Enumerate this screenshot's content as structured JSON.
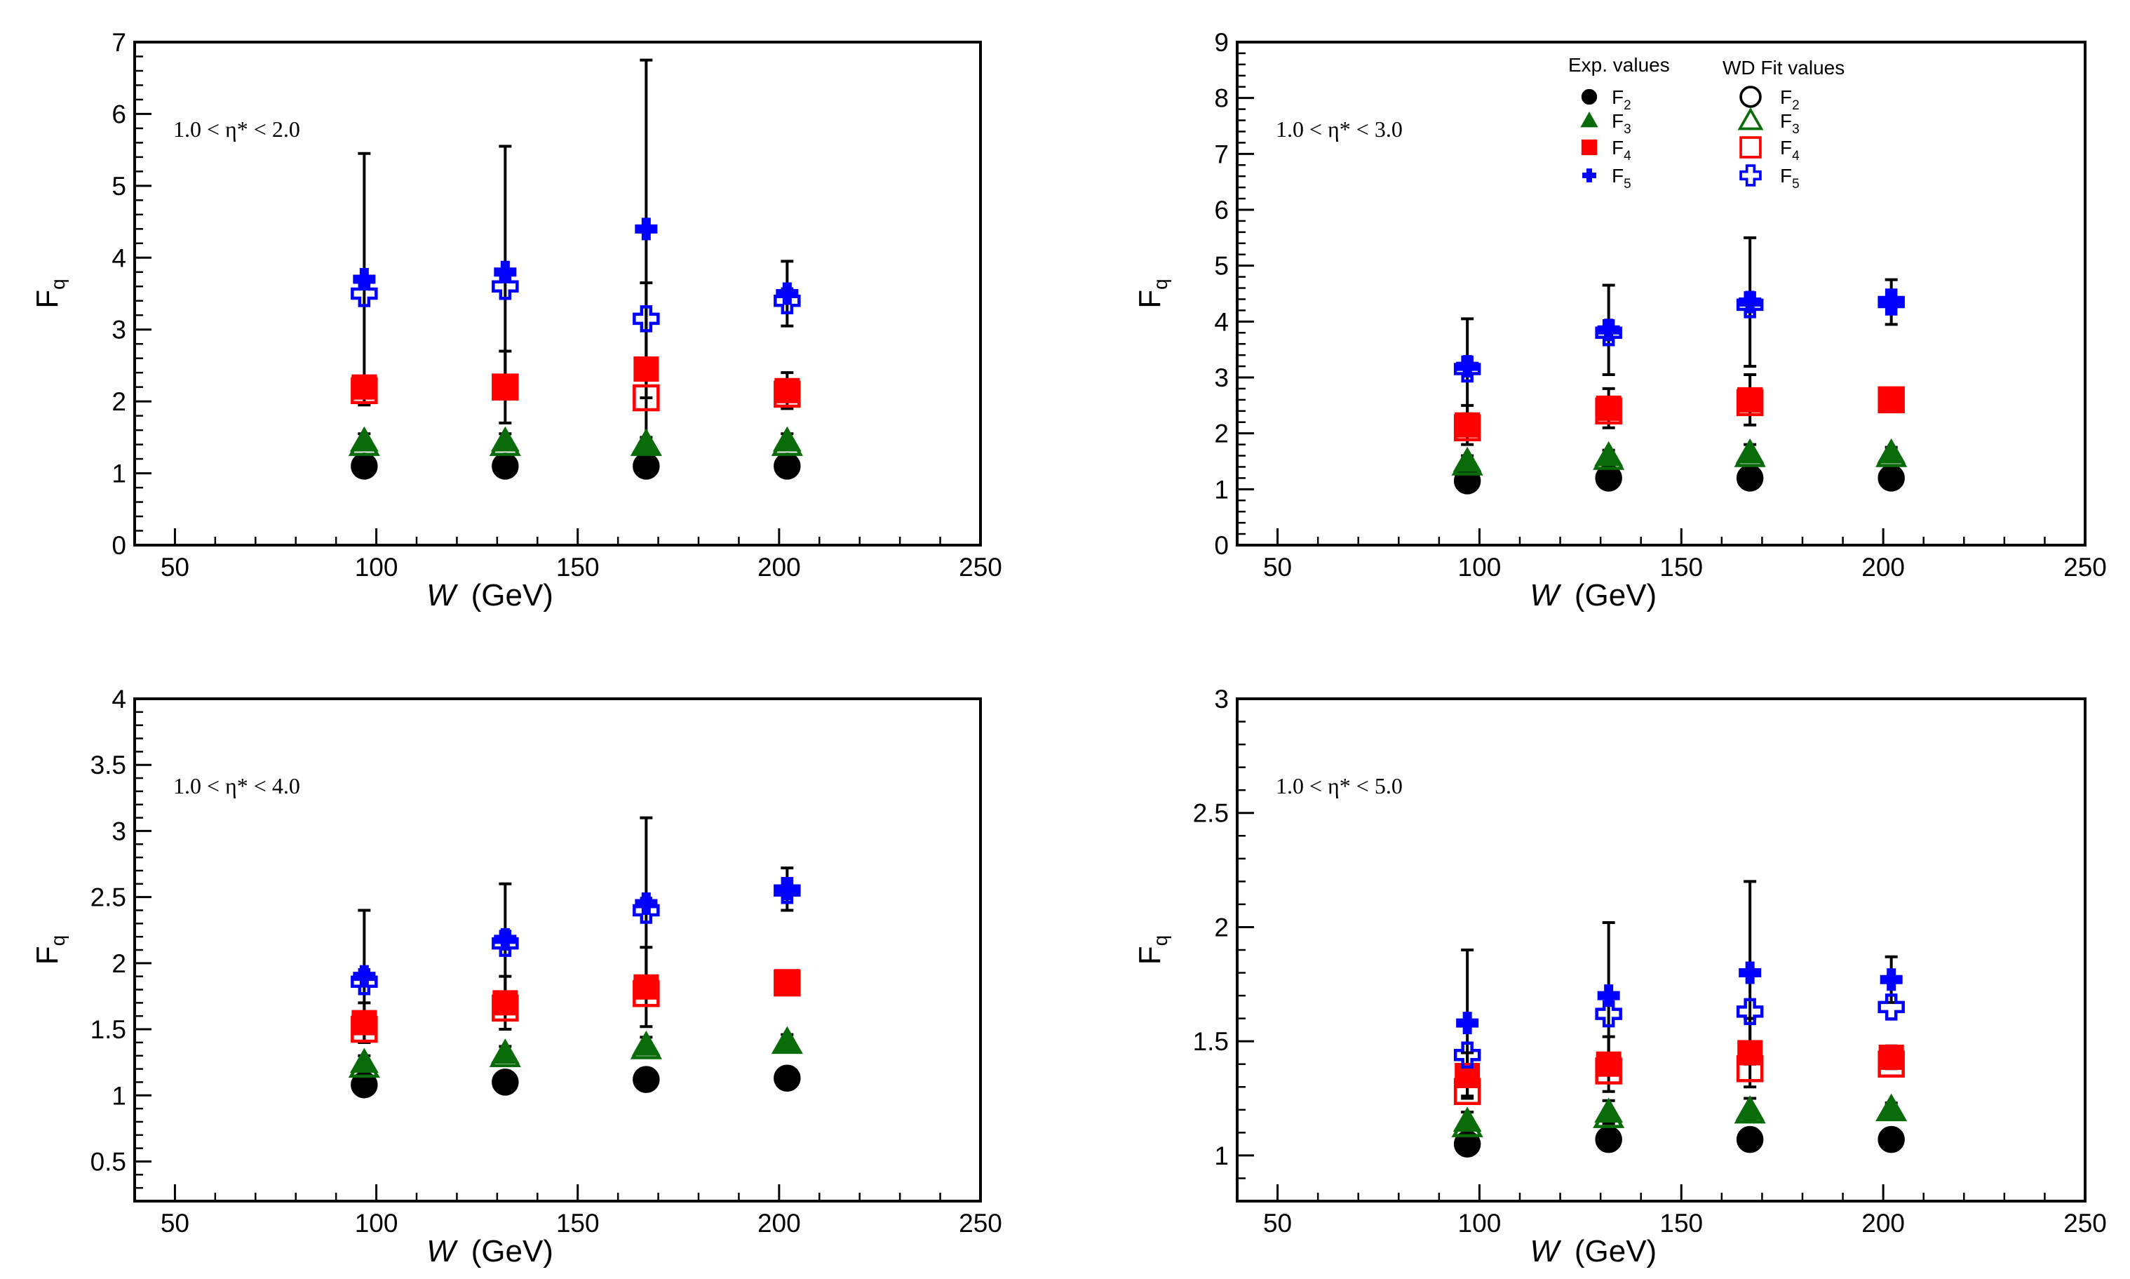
{
  "colors": {
    "F2": "#000000",
    "F3": "#0a6b0a",
    "F4": "#ff0000",
    "F5": "#0000ff",
    "error": "#000000"
  },
  "legend": {
    "exp_title": "Exp. values",
    "fit_title": "WD Fit values",
    "entries": [
      {
        "key": "F2",
        "main": "F",
        "sub": "2"
      },
      {
        "key": "F3",
        "main": "F",
        "sub": "3"
      },
      {
        "key": "F4",
        "main": "F",
        "sub": "4"
      },
      {
        "key": "F5",
        "main": "F",
        "sub": "5"
      }
    ]
  },
  "chart_data": [
    {
      "type": "scatter",
      "panel": "top-left",
      "annotation": "1.0 < η* < 2.0",
      "xlabel": {
        "var": "W",
        "unit": "(GeV)"
      },
      "ylabel": {
        "main": "F",
        "sub": "q"
      },
      "xlim": [
        40,
        250
      ],
      "ylim": [
        0,
        7
      ],
      "xticks": [
        "50",
        "100",
        "150",
        "200",
        "250"
      ],
      "yticks": [
        "0",
        "1",
        "2",
        "3",
        "4",
        "5",
        "6",
        "7"
      ],
      "x": [
        97,
        132,
        167,
        202
      ],
      "series": [
        {
          "name": "F2",
          "exp": [
            1.1,
            1.1,
            1.1,
            1.1
          ],
          "fit": [
            1.1,
            1.1,
            1.1,
            1.1
          ],
          "err": [
            0.05,
            0.05,
            0.05,
            0.05
          ]
        },
        {
          "name": "F3",
          "exp": [
            1.45,
            1.45,
            1.4,
            1.45
          ],
          "fit": [
            1.4,
            1.4,
            1.4,
            1.4
          ],
          "err": [
            0.1,
            0.1,
            0.1,
            0.1
          ]
        },
        {
          "name": "F4",
          "exp": [
            2.2,
            2.2,
            2.45,
            2.15
          ],
          "fit": [
            2.15,
            2.2,
            2.05,
            2.1
          ],
          "err": [
            0.15,
            0.5,
            1.2,
            0.25
          ]
        },
        {
          "name": "F5",
          "exp": [
            3.7,
            3.8,
            4.4,
            3.5
          ],
          "fit": [
            3.5,
            3.6,
            3.15,
            3.4
          ],
          "err": [
            1.75,
            1.75,
            2.35,
            0.45
          ]
        }
      ]
    },
    {
      "type": "scatter",
      "panel": "top-right",
      "annotation": "1.0 < η* < 3.0",
      "xlabel": {
        "var": "W",
        "unit": "(GeV)"
      },
      "ylabel": {
        "main": "F",
        "sub": "q"
      },
      "xlim": [
        40,
        250
      ],
      "ylim": [
        0,
        9
      ],
      "xticks": [
        "50",
        "100",
        "150",
        "200",
        "250"
      ],
      "yticks": [
        "0",
        "1",
        "2",
        "3",
        "4",
        "5",
        "6",
        "7",
        "8",
        "9"
      ],
      "x": [
        97,
        132,
        167,
        202
      ],
      "series": [
        {
          "name": "F2",
          "exp": [
            1.15,
            1.2,
            1.2,
            1.2
          ],
          "fit": [
            1.15,
            1.2,
            1.2,
            1.2
          ],
          "err": [
            0.05,
            0.05,
            0.05,
            0.05
          ]
        },
        {
          "name": "F3",
          "exp": [
            1.5,
            1.6,
            1.65,
            1.65
          ],
          "fit": [
            1.45,
            1.55,
            1.6,
            1.6
          ],
          "err": [
            0.1,
            0.1,
            0.15,
            0.1
          ]
        },
        {
          "name": "F4",
          "exp": [
            2.15,
            2.45,
            2.6,
            2.6
          ],
          "fit": [
            2.1,
            2.4,
            2.55,
            2.6
          ],
          "err": [
            0.35,
            0.35,
            0.45,
            0.15
          ]
        },
        {
          "name": "F5",
          "exp": [
            3.2,
            3.85,
            4.35,
            4.35
          ],
          "fit": [
            3.15,
            3.8,
            4.3,
            4.35
          ],
          "err": [
            0.85,
            0.8,
            1.15,
            0.4
          ]
        }
      ]
    },
    {
      "type": "scatter",
      "panel": "bottom-left",
      "annotation": "1.0 < η* < 4.0",
      "xlabel": {
        "var": "W",
        "unit": "(GeV)"
      },
      "ylabel": {
        "main": "F",
        "sub": "q"
      },
      "xlim": [
        40,
        250
      ],
      "ylim": [
        0.2,
        4
      ],
      "xticks": [
        "50",
        "100",
        "150",
        "200",
        "250"
      ],
      "yticks": [
        "0.5",
        "1",
        "1.5",
        "2",
        "2.5",
        "3",
        "3.5",
        "4"
      ],
      "x": [
        97,
        132,
        167,
        202
      ],
      "series": [
        {
          "name": "F2",
          "exp": [
            1.08,
            1.1,
            1.12,
            1.13
          ],
          "fit": [
            1.08,
            1.1,
            1.12,
            1.13
          ],
          "err": [
            0.03,
            0.03,
            0.03,
            0.03
          ]
        },
        {
          "name": "F3",
          "exp": [
            1.25,
            1.32,
            1.38,
            1.41
          ],
          "fit": [
            1.22,
            1.3,
            1.36,
            1.4
          ],
          "err": [
            0.05,
            0.05,
            0.06,
            0.05
          ]
        },
        {
          "name": "F4",
          "exp": [
            1.55,
            1.7,
            1.82,
            1.86
          ],
          "fit": [
            1.5,
            1.66,
            1.77,
            1.85
          ],
          "err": [
            0.15,
            0.2,
            0.3,
            0.06
          ]
        },
        {
          "name": "F5",
          "exp": [
            1.9,
            2.18,
            2.45,
            2.56
          ],
          "fit": [
            1.86,
            2.15,
            2.4,
            2.55
          ],
          "err": [
            0.5,
            0.42,
            0.65,
            0.16
          ]
        }
      ]
    },
    {
      "type": "scatter",
      "panel": "bottom-right",
      "annotation": "1.0 < η* < 5.0",
      "xlabel": {
        "var": "W",
        "unit": "(GeV)"
      },
      "ylabel": {
        "main": "F",
        "sub": "q"
      },
      "xlim": [
        40,
        250
      ],
      "ylim": [
        0.8,
        3
      ],
      "xticks": [
        "50",
        "100",
        "150",
        "200",
        "250"
      ],
      "yticks": [
        "1",
        "1.5",
        "2",
        "2.5",
        "3"
      ],
      "x": [
        97,
        132,
        167,
        202
      ],
      "series": [
        {
          "name": "F2",
          "exp": [
            1.05,
            1.07,
            1.07,
            1.07
          ],
          "fit": [
            1.05,
            1.07,
            1.07,
            1.07
          ],
          "err": [
            0.02,
            0.02,
            0.02,
            0.02
          ]
        },
        {
          "name": "F3",
          "exp": [
            1.15,
            1.19,
            1.2,
            1.2
          ],
          "fit": [
            1.13,
            1.17,
            1.19,
            1.2
          ],
          "err": [
            0.04,
            0.05,
            0.05,
            0.03
          ]
        },
        {
          "name": "F4",
          "exp": [
            1.35,
            1.4,
            1.45,
            1.43
          ],
          "fit": [
            1.28,
            1.37,
            1.38,
            1.4
          ],
          "err": [
            0.1,
            0.12,
            0.15,
            0.05
          ]
        },
        {
          "name": "F5",
          "exp": [
            1.58,
            1.7,
            1.8,
            1.77
          ],
          "fit": [
            1.44,
            1.62,
            1.63,
            1.65
          ],
          "err": [
            0.32,
            0.32,
            0.4,
            0.1
          ]
        }
      ]
    }
  ]
}
